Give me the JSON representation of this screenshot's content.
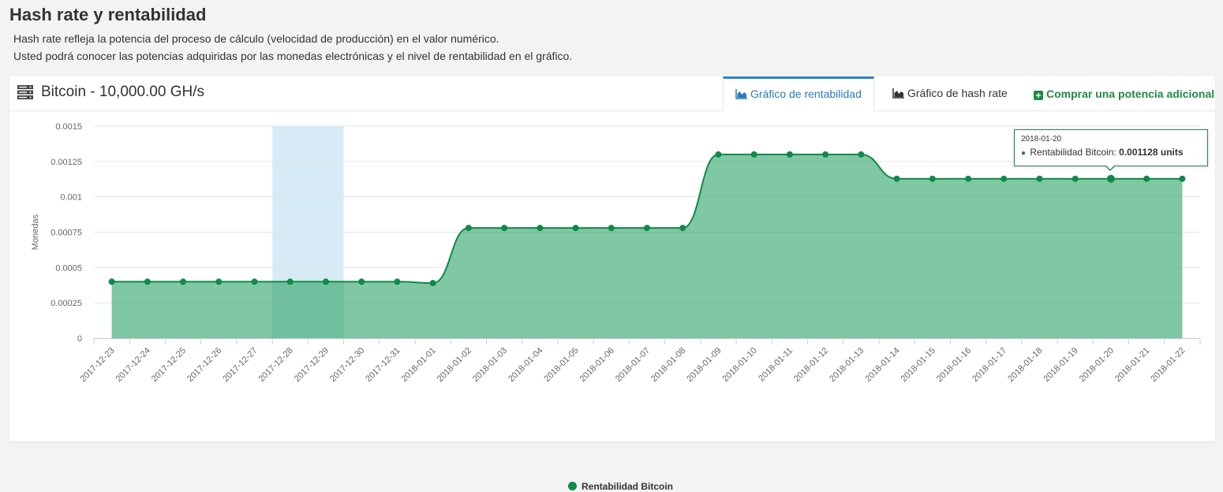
{
  "page": {
    "title": "Hash rate y rentabilidad",
    "description_line1": "Hash rate refleja la potencia del proceso de cálculo (velocidad de producción) en el valor numérico.",
    "description_line2": "Usted podrá conocer las potencias adquiridas por las monedas electrónicas y el nivel de rentabilidad en el gráfico."
  },
  "card": {
    "title": "Bitcoin - 10,000.00 GH/s",
    "icon": "server-icon",
    "tabs": [
      {
        "label": "Gráfico de rentabilidad",
        "icon": "area-chart-icon",
        "active": true
      },
      {
        "label": "Gráfico de hash rate",
        "icon": "area-chart-icon",
        "active": false
      }
    ],
    "buy_label": "Comprar una potencia adicional"
  },
  "tooltip": {
    "date": "2018-01-20",
    "series": "Rentabilidad Bitcoin:",
    "value": "0.001128 units"
  },
  "colors": {
    "accent": "#2a85c4",
    "brand_green": "#1f8a45",
    "series_line": "#0f8a48",
    "series_fill": "#7fc5a0",
    "highlight_band": "#d6ebf5"
  },
  "chart_data": {
    "type": "area",
    "ylabel": "Monedas",
    "ylim": [
      0,
      0.0015
    ],
    "y_ticks": [
      "0",
      "0.00025",
      "0.0005",
      "0.00075",
      "0.001",
      "0.00125",
      "0.0015"
    ],
    "highlight_range": [
      "2017-12-28",
      "2017-12-29"
    ],
    "x": [
      "2017-12-23",
      "2017-12-24",
      "2017-12-25",
      "2017-12-26",
      "2017-12-27",
      "2017-12-28",
      "2017-12-29",
      "2017-12-30",
      "2017-12-31",
      "2018-01-01",
      "2018-01-02",
      "2018-01-03",
      "2018-01-04",
      "2018-01-05",
      "2018-01-06",
      "2018-01-07",
      "2018-01-08",
      "2018-01-09",
      "2018-01-10",
      "2018-01-11",
      "2018-01-12",
      "2018-01-13",
      "2018-01-14",
      "2018-01-15",
      "2018-01-16",
      "2018-01-17",
      "2018-01-18",
      "2018-01-19",
      "2018-01-20",
      "2018-01-21",
      "2018-01-22"
    ],
    "series": [
      {
        "name": "Rentabilidad Bitcoin",
        "values": [
          0.0004,
          0.0004,
          0.0004,
          0.0004,
          0.0004,
          0.0004,
          0.0004,
          0.0004,
          0.0004,
          0.00039,
          0.00078,
          0.00078,
          0.00078,
          0.00078,
          0.00078,
          0.00078,
          0.00078,
          0.0013,
          0.0013,
          0.0013,
          0.0013,
          0.0013,
          0.001128,
          0.001128,
          0.001128,
          0.001128,
          0.001128,
          0.001128,
          0.001128,
          0.001128,
          0.001128
        ]
      }
    ],
    "tooltip_index": 28
  }
}
